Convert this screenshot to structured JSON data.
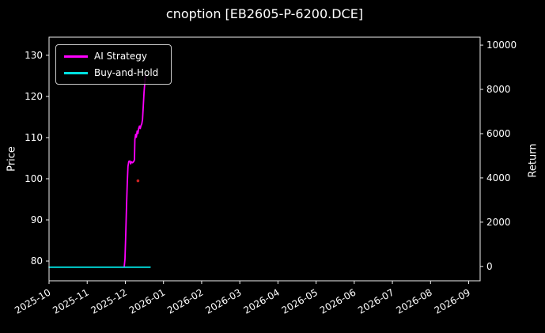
{
  "chart": {
    "title": "cnoption [EB2605-P-6200.DCE]",
    "left_axis_label": "Price",
    "right_axis_label": "Return",
    "legend": [
      {
        "label": "AI Strategy",
        "color": "#ff00ff"
      },
      {
        "label": "Buy-and-Hold",
        "color": "#00e0e0"
      }
    ]
  },
  "chart_data": {
    "type": "line",
    "title": "cnoption [EB2605-P-6200.DCE]",
    "xlabel": "",
    "ylabel_left": "Price",
    "ylabel_right": "Return",
    "x_unit": "months since 2025-10",
    "x_ticks": [
      0,
      1,
      2,
      3,
      4,
      5,
      6,
      7,
      8,
      9,
      10,
      11
    ],
    "x_tick_labels": [
      "2025-10",
      "2025-11",
      "2025-12",
      "2026-01",
      "2026-02",
      "2026-03",
      "2026-04",
      "2026-05",
      "2026-06",
      "2026-07",
      "2026-08",
      "2026-09"
    ],
    "xlim": [
      0,
      11.3
    ],
    "left_ticks": [
      80,
      90,
      100,
      110,
      120,
      130
    ],
    "right_ticks": [
      0,
      2000,
      4000,
      6000,
      8000,
      10000
    ],
    "price_ylim": [
      75.2,
      134.4
    ],
    "return_ylim": [
      -650,
      10360
    ],
    "grid": false,
    "legend_position": "upper left",
    "series": [
      {
        "name": "AI Strategy",
        "axis": "left",
        "color": "#ff00ff",
        "points": [
          [
            1.97,
            78.5
          ],
          [
            1.99,
            80.5
          ],
          [
            2.01,
            86.0
          ],
          [
            2.03,
            93.0
          ],
          [
            2.05,
            99.0
          ],
          [
            2.07,
            103.0
          ],
          [
            2.09,
            104.2
          ],
          [
            2.12,
            104.3
          ],
          [
            2.14,
            103.6
          ],
          [
            2.16,
            104.1
          ],
          [
            2.19,
            103.9
          ],
          [
            2.22,
            104.2
          ],
          [
            2.24,
            104.6
          ],
          [
            2.25,
            109.5
          ],
          [
            2.27,
            110.8
          ],
          [
            2.29,
            110.1
          ],
          [
            2.31,
            111.6
          ],
          [
            2.33,
            111.0
          ],
          [
            2.35,
            112.2
          ],
          [
            2.37,
            112.8
          ],
          [
            2.39,
            112.2
          ],
          [
            2.41,
            112.9
          ],
          [
            2.43,
            113.3
          ],
          [
            2.45,
            114.4
          ],
          [
            2.47,
            117.5
          ],
          [
            2.49,
            121.0
          ],
          [
            2.51,
            123.5
          ],
          [
            2.53,
            125.0
          ]
        ]
      },
      {
        "name": "Buy-and-Hold",
        "axis": "left",
        "color": "#00e0e0",
        "points": [
          [
            0.0,
            78.5
          ],
          [
            2.65,
            78.5
          ]
        ]
      }
    ],
    "markers": [
      {
        "x": 2.33,
        "y": 99.5,
        "axis": "left",
        "color": "#cc2222",
        "shape": "dot"
      }
    ]
  }
}
